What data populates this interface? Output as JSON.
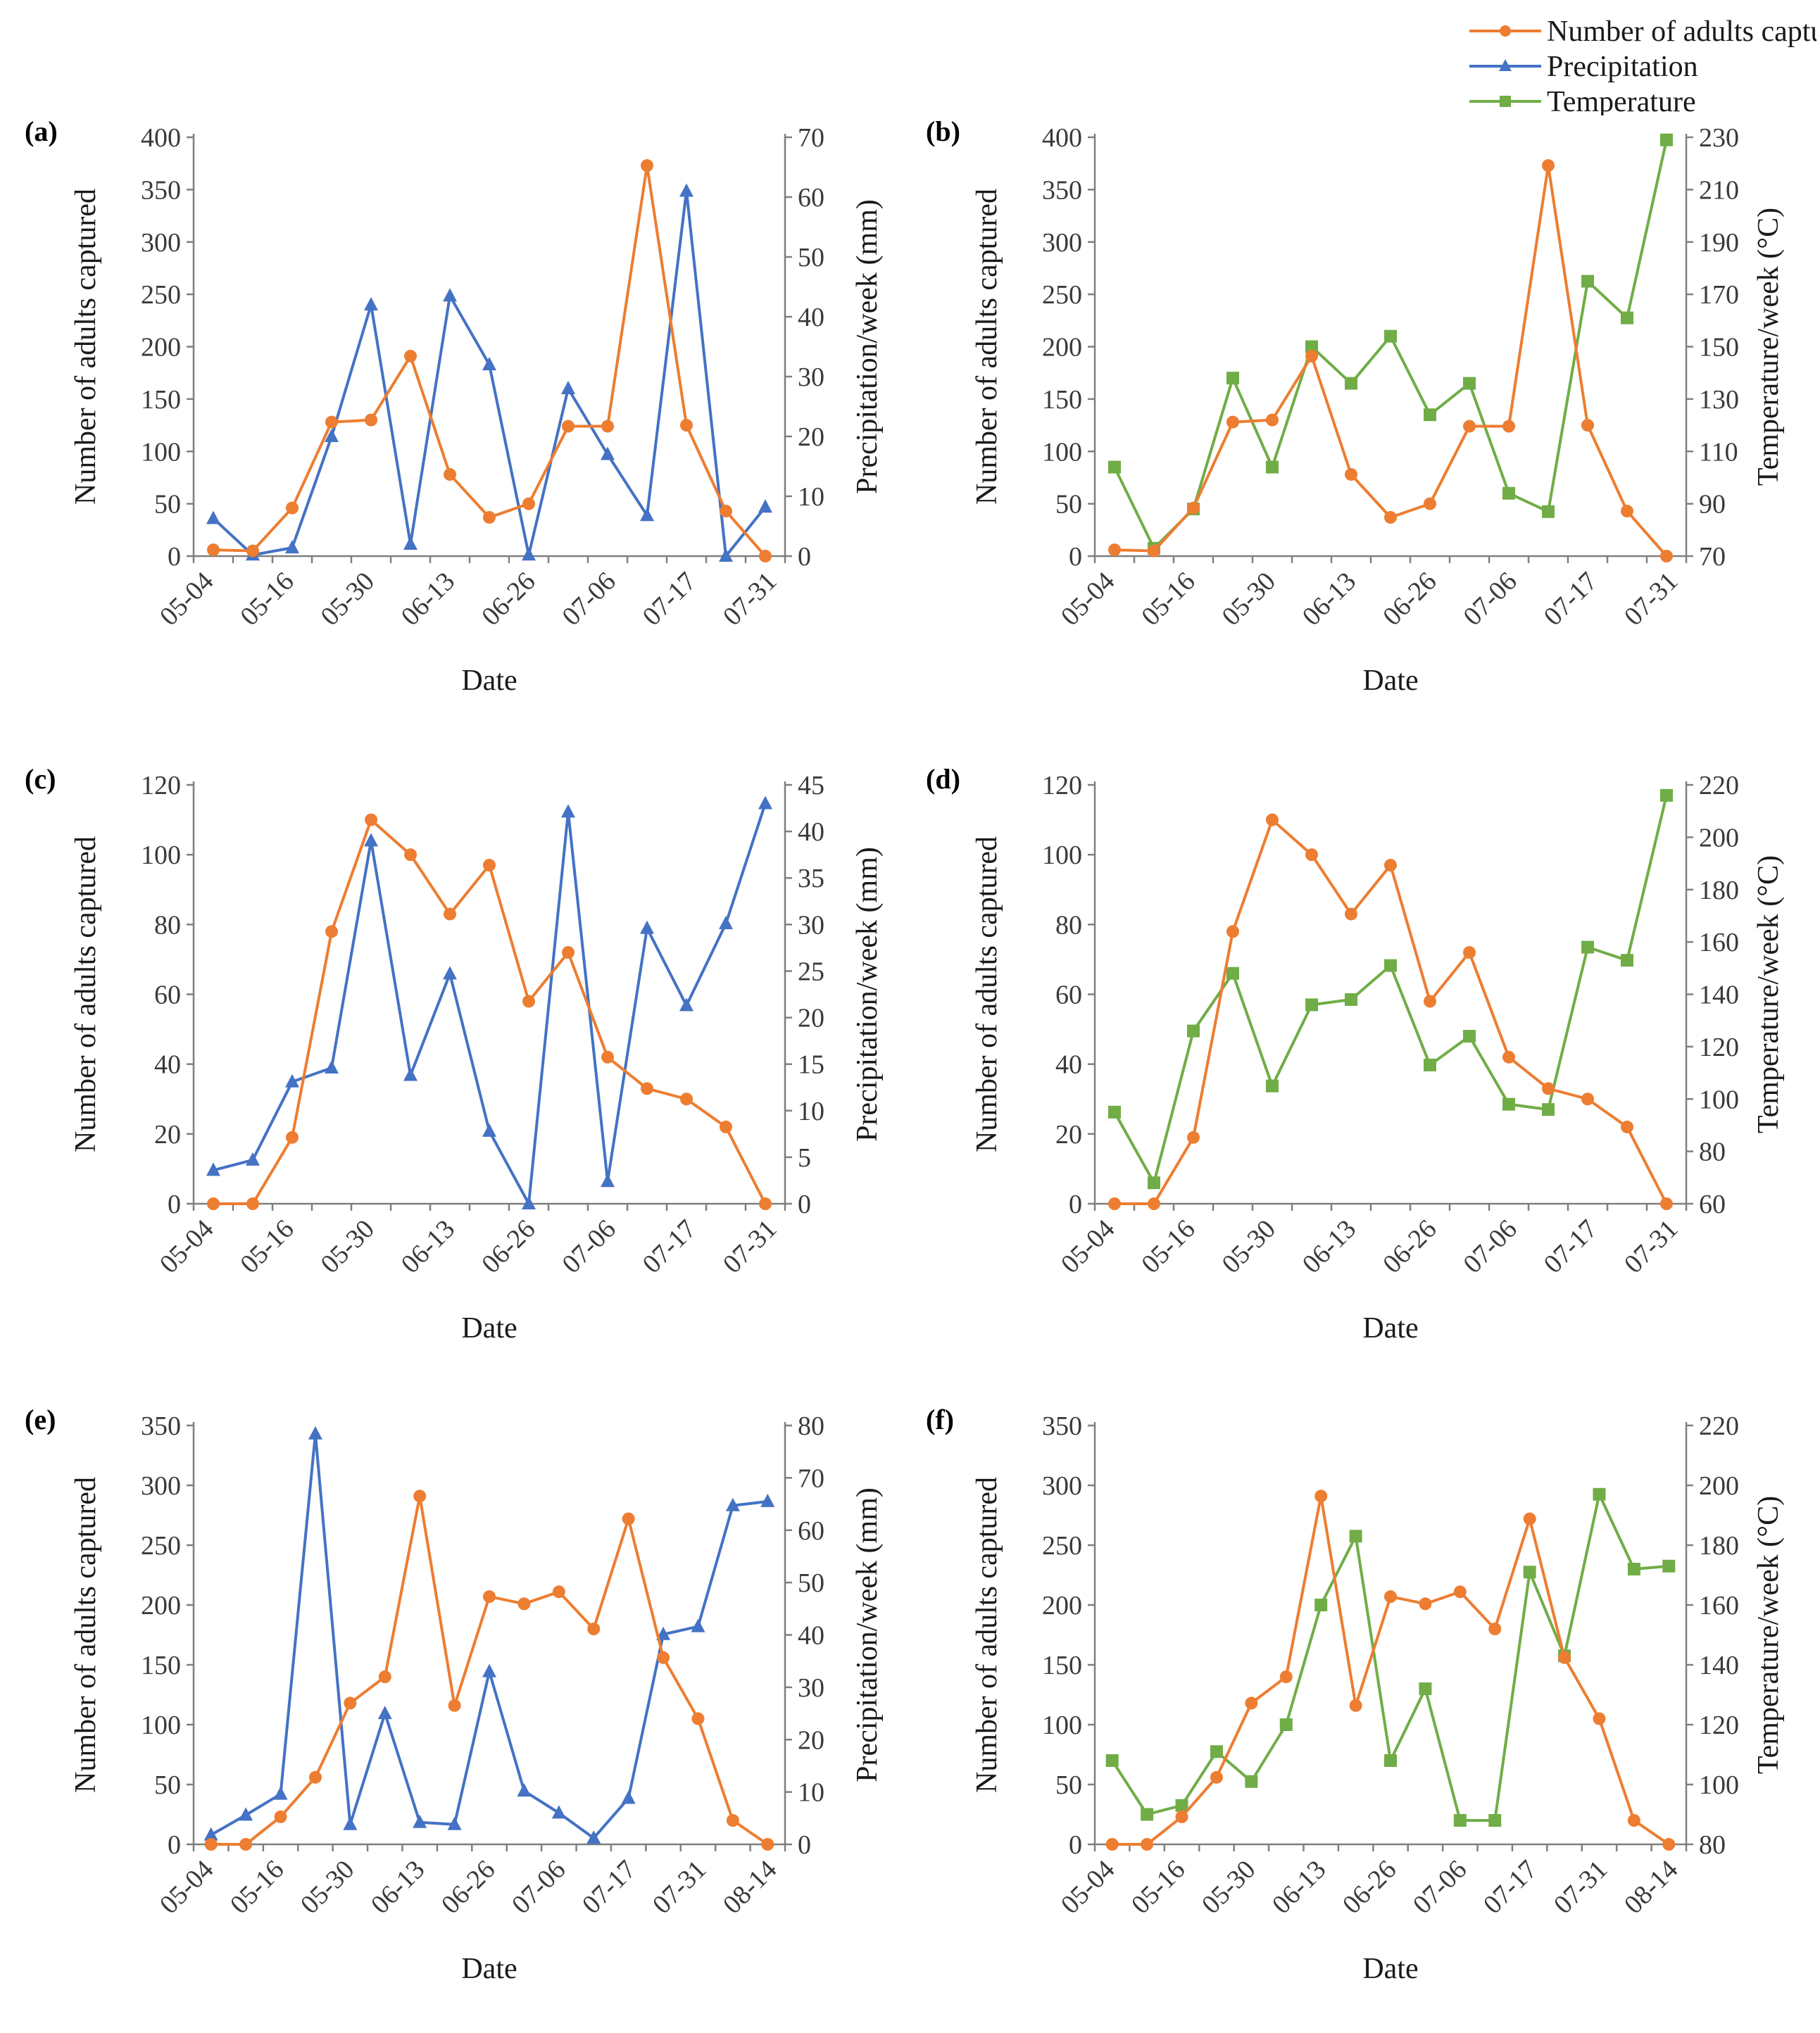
{
  "legend": {
    "adults": "Number of adults captured",
    "precipitation": "Precipitation",
    "temperature": "Temperature"
  },
  "colors": {
    "adults": "#ED7D31",
    "precipitation": "#4472C4",
    "temperature": "#70AD47",
    "axis": "#7f7f7f"
  },
  "chart_data": [
    {
      "id": "a",
      "panel_label": "(a)",
      "type": "line",
      "xlabel": "Date",
      "ylabel": "Number of adults captured",
      "y2label": "Precipitation/week (mm)",
      "tick_labels": [
        "05-04",
        "05-16",
        "05-30",
        "06-13",
        "06-26",
        "07-06",
        "07-17",
        "07-31"
      ],
      "ylim": [
        0,
        400
      ],
      "ystep": 50,
      "y2lim": [
        0,
        70
      ],
      "y2step": 10,
      "series": [
        {
          "name": "Number of adults",
          "axis": "left",
          "marker": "circle",
          "color": "#ED7D31",
          "values": [
            6,
            5,
            46,
            128,
            130,
            191,
            78,
            37,
            50,
            124,
            124,
            373,
            125,
            43,
            0
          ]
        },
        {
          "name": "Precipitation",
          "axis": "right",
          "marker": "triangle",
          "color": "#4472C4",
          "values": [
            6.3,
            0.2,
            1.4,
            20,
            42,
            2,
            43.5,
            32,
            0.2,
            28,
            17,
            6.8,
            61,
            0,
            8.2
          ]
        }
      ]
    },
    {
      "id": "b",
      "panel_label": "(b)",
      "type": "line",
      "xlabel": "Date",
      "ylabel": "Number of adults captured",
      "y2label": "Temperature/week (°C)",
      "tick_labels": [
        "05-04",
        "05-16",
        "05-30",
        "06-13",
        "06-26",
        "07-06",
        "07-17",
        "07-31"
      ],
      "ylim": [
        0,
        400
      ],
      "ystep": 50,
      "y2lim": [
        70,
        230
      ],
      "y2step": 20,
      "series": [
        {
          "name": "Number of adults",
          "axis": "left",
          "marker": "circle",
          "color": "#ED7D31",
          "values": [
            6,
            5,
            46,
            128,
            130,
            191,
            78,
            37,
            50,
            124,
            124,
            373,
            125,
            43,
            0
          ]
        },
        {
          "name": "Temperature",
          "axis": "right",
          "marker": "square",
          "color": "#70AD47",
          "values": [
            104,
            73,
            88,
            138,
            104,
            150,
            136,
            154,
            124,
            136,
            94,
            87,
            175,
            161,
            229
          ]
        }
      ]
    },
    {
      "id": "c",
      "panel_label": "(c)",
      "type": "line",
      "xlabel": "Date",
      "ylabel": "Number of adults captured",
      "y2label": "Precipitation/week (mm)",
      "tick_labels": [
        "05-04",
        "05-16",
        "05-30",
        "06-13",
        "06-26",
        "07-06",
        "07-17",
        "07-31"
      ],
      "ylim": [
        0,
        120
      ],
      "ystep": 20,
      "y2lim": [
        0,
        45
      ],
      "y2step": 5,
      "series": [
        {
          "name": "Number of adults",
          "axis": "left",
          "marker": "circle",
          "color": "#ED7D31",
          "values": [
            0,
            0,
            19,
            78,
            110,
            100,
            83,
            97,
            58,
            72,
            42,
            33,
            30,
            22,
            0
          ]
        },
        {
          "name": "Precipitation",
          "axis": "right",
          "marker": "triangle",
          "color": "#4472C4",
          "values": [
            3.6,
            4.7,
            13.1,
            14.6,
            39,
            13.8,
            24.7,
            7.8,
            0,
            42.1,
            2.4,
            29.6,
            21.3,
            30.1,
            43
          ]
        }
      ]
    },
    {
      "id": "d",
      "panel_label": "(d)",
      "type": "line",
      "xlabel": "Date",
      "ylabel": "Number of adults captured",
      "y2label": "Temperature/week (°C)",
      "tick_labels": [
        "05-04",
        "05-16",
        "05-30",
        "06-13",
        "06-26",
        "07-06",
        "07-17",
        "07-31"
      ],
      "ylim": [
        0,
        120
      ],
      "ystep": 20,
      "y2lim": [
        60,
        220
      ],
      "y2step": 20,
      "series": [
        {
          "name": "Number of adults",
          "axis": "left",
          "marker": "circle",
          "color": "#ED7D31",
          "values": [
            0,
            0,
            19,
            78,
            110,
            100,
            83,
            97,
            58,
            72,
            42,
            33,
            30,
            22,
            0
          ]
        },
        {
          "name": "Temperature",
          "axis": "right",
          "marker": "square",
          "color": "#70AD47",
          "values": [
            95,
            68,
            126,
            148,
            105,
            136,
            138,
            151,
            113,
            124,
            98,
            96,
            158,
            153,
            216
          ]
        }
      ]
    },
    {
      "id": "e",
      "panel_label": "(e)",
      "type": "line",
      "xlabel": "Date",
      "ylabel": "Number of adults captured",
      "y2label": "Precipitation/week (mm)",
      "tick_labels": [
        "05-04",
        "05-16",
        "05-30",
        "06-13",
        "06-26",
        "07-06",
        "07-17",
        "07-31",
        "08-14"
      ],
      "ylim": [
        0,
        350
      ],
      "ystep": 50,
      "y2lim": [
        0,
        80
      ],
      "y2step": 10,
      "series": [
        {
          "name": "Number of adults",
          "axis": "left",
          "marker": "circle",
          "color": "#ED7D31",
          "values": [
            0,
            0,
            23,
            56,
            118,
            140,
            291,
            116,
            207,
            201,
            211,
            180,
            272,
            156,
            105,
            20,
            0
          ]
        },
        {
          "name": "Precipitation",
          "axis": "right",
          "marker": "triangle",
          "color": "#4472C4",
          "values": [
            1.8,
            5.6,
            9.6,
            78.4,
            3.8,
            25,
            4.2,
            3.8,
            33,
            10.2,
            6,
            1.2,
            8.8,
            40.1,
            41.6,
            64.7,
            65.5
          ]
        }
      ]
    },
    {
      "id": "f",
      "panel_label": "(f)",
      "type": "line",
      "xlabel": "Date",
      "ylabel": "Number of adults captured",
      "y2label": "Temperature/week (°C)",
      "tick_labels": [
        "05-04",
        "05-16",
        "05-30",
        "06-13",
        "06-26",
        "07-06",
        "07-17",
        "07-31",
        "08-14"
      ],
      "ylim": [
        0,
        350
      ],
      "ystep": 50,
      "y2lim": [
        80,
        220
      ],
      "y2step": 20,
      "series": [
        {
          "name": "Number of adults",
          "axis": "left",
          "marker": "circle",
          "color": "#ED7D31",
          "values": [
            0,
            0,
            23,
            56,
            118,
            140,
            291,
            116,
            207,
            201,
            211,
            180,
            272,
            156,
            105,
            20,
            0
          ]
        },
        {
          "name": "Temperature",
          "axis": "right",
          "marker": "square",
          "color": "#70AD47",
          "values": [
            108,
            90,
            93,
            111,
            101,
            120,
            160,
            183,
            108,
            132,
            88,
            88,
            171,
            143,
            197,
            172,
            173
          ]
        }
      ]
    }
  ]
}
